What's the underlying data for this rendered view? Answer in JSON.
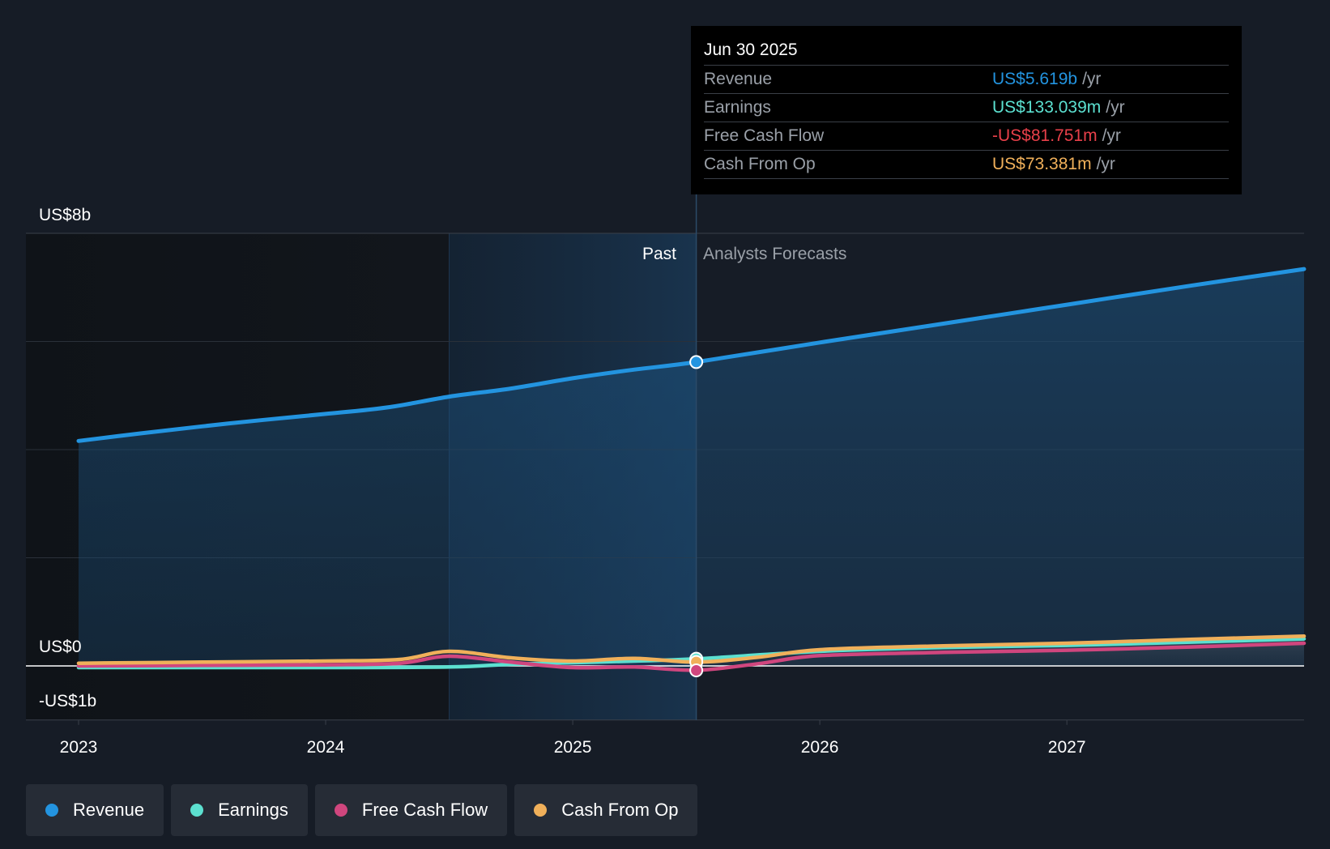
{
  "chart_data": {
    "type": "line",
    "y_top_label": "US$8b",
    "y_zero_label": "US$0",
    "y_bottom_label": "-US$1b",
    "ylim": [
      -1,
      8
    ],
    "xlim": [
      2023,
      2027.96
    ],
    "x_ticks": [
      {
        "label": "2023",
        "value": 2023
      },
      {
        "label": "2024",
        "value": 2024
      },
      {
        "label": "2025",
        "value": 2025
      },
      {
        "label": "2026",
        "value": 2026
      },
      {
        "label": "2027",
        "value": 2027
      }
    ],
    "past_label": "Past",
    "forecast_label": "Analysts Forecasts",
    "forecast_start": 2025.5,
    "highlight_start": 2024.5,
    "grid": true,
    "series": [
      {
        "name": "Revenue",
        "color": "#2394e0",
        "area": true,
        "x": [
          2023,
          2023.25,
          2023.5,
          2023.75,
          2024,
          2024.25,
          2024.5,
          2024.75,
          2025,
          2025.25,
          2025.5,
          2026,
          2026.5,
          2027,
          2027.5,
          2027.96
        ],
        "y": [
          4.16,
          4.3,
          4.43,
          4.55,
          4.66,
          4.78,
          4.98,
          5.13,
          5.32,
          5.48,
          5.62,
          5.98,
          6.33,
          6.68,
          7.03,
          7.34
        ]
      },
      {
        "name": "Earnings",
        "color": "#5ce0d0",
        "area": false,
        "x": [
          2023,
          2023.5,
          2024,
          2024.5,
          2024.75,
          2025,
          2025.25,
          2025.5,
          2026,
          2026.5,
          2027,
          2027.5,
          2027.96
        ],
        "y": [
          -0.03,
          -0.03,
          -0.03,
          -0.02,
          0.03,
          0.06,
          0.09,
          0.13,
          0.27,
          0.34,
          0.38,
          0.44,
          0.5
        ]
      },
      {
        "name": "Free Cash Flow",
        "color": "#d0467e",
        "area": false,
        "x": [
          2023,
          2023.5,
          2024,
          2024.3,
          2024.5,
          2024.75,
          2025,
          2025.25,
          2025.5,
          2025.75,
          2026,
          2026.5,
          2027,
          2027.5,
          2027.96
        ],
        "y": [
          0.0,
          0.01,
          0.02,
          0.05,
          0.18,
          0.07,
          -0.03,
          -0.02,
          -0.08,
          0.04,
          0.19,
          0.25,
          0.29,
          0.35,
          0.42
        ]
      },
      {
        "name": "Cash From Op",
        "color": "#f0b05a",
        "area": false,
        "x": [
          2023,
          2023.5,
          2024,
          2024.3,
          2024.5,
          2024.75,
          2025,
          2025.25,
          2025.5,
          2025.75,
          2026,
          2026.5,
          2027,
          2027.5,
          2027.96
        ],
        "y": [
          0.05,
          0.07,
          0.09,
          0.12,
          0.27,
          0.15,
          0.09,
          0.14,
          0.07,
          0.16,
          0.3,
          0.37,
          0.42,
          0.49,
          0.55
        ]
      }
    ],
    "markers": [
      {
        "series": "Revenue",
        "x": 2025.5,
        "y": 5.619
      },
      {
        "series": "Earnings",
        "x": 2025.5,
        "y": 0.133
      },
      {
        "series": "Cash From Op",
        "x": 2025.5,
        "y": 0.073
      },
      {
        "series": "Free Cash Flow",
        "x": 2025.5,
        "y": -0.082
      }
    ]
  },
  "tooltip": {
    "date": "Jun 30 2025",
    "rows": [
      {
        "label": "Revenue",
        "value": "US$5.619b",
        "unit": "/yr",
        "color": "#2394e0"
      },
      {
        "label": "Earnings",
        "value": "US$133.039m",
        "unit": "/yr",
        "color": "#5ce0d0"
      },
      {
        "label": "Free Cash Flow",
        "value": "-US$81.751m",
        "unit": "/yr",
        "color": "#e8404a"
      },
      {
        "label": "Cash From Op",
        "value": "US$73.381m",
        "unit": "/yr",
        "color": "#f0b05a"
      }
    ]
  },
  "legend": [
    {
      "label": "Revenue",
      "color": "#2394e0"
    },
    {
      "label": "Earnings",
      "color": "#5ce0d0"
    },
    {
      "label": "Free Cash Flow",
      "color": "#d0467e"
    },
    {
      "label": "Cash From Op",
      "color": "#f0b05a"
    }
  ]
}
